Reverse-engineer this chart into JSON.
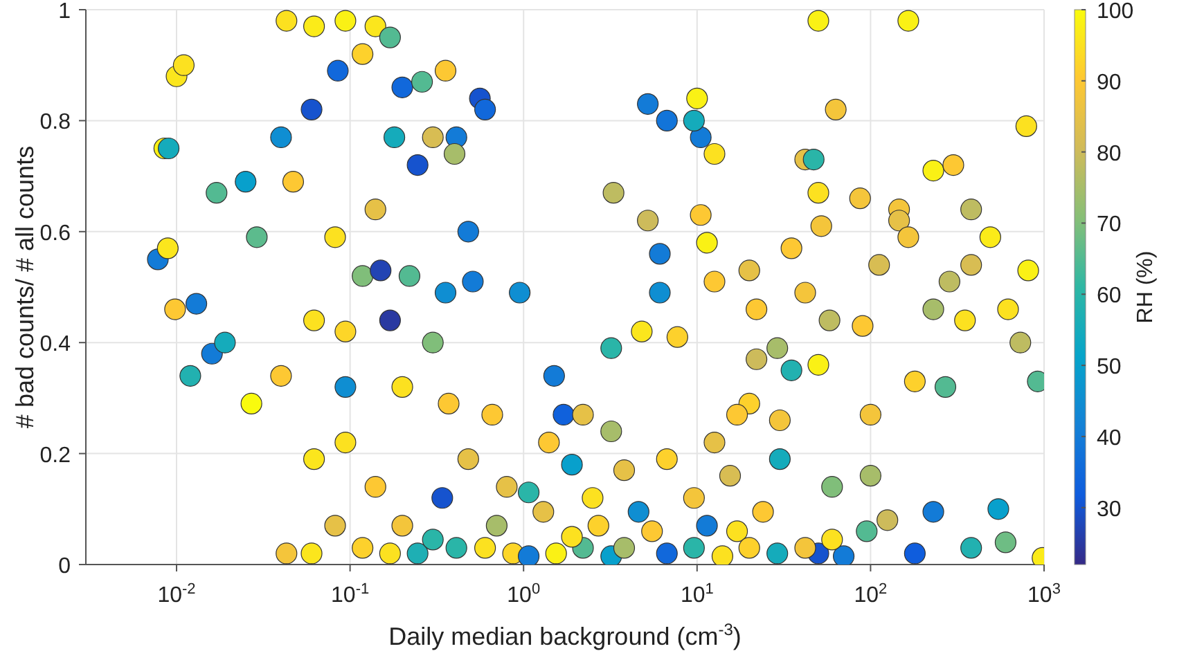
{
  "chart_data": {
    "type": "scatter",
    "xlabel": "Daily median background (cm$^{-3}$)",
    "ylabel": "# bad counts/ # all counts",
    "clabel": "RH (%)",
    "log": "x",
    "grid": true,
    "marker": "circle",
    "xlim": [
      0.003,
      1000
    ],
    "xticks": [
      {
        "value": 0.01,
        "label": "10$^{-2}$"
      },
      {
        "value": 0.1,
        "label": "10$^{-1}$"
      },
      {
        "value": 1,
        "label": "10$^{0}$"
      },
      {
        "value": 10,
        "label": "10$^{1}$"
      },
      {
        "value": 100,
        "label": "10$^{2}$"
      },
      {
        "value": 1000,
        "label": "10$^{3}$"
      }
    ],
    "ylim": [
      0,
      1
    ],
    "yticks": [
      0,
      0.2,
      0.4,
      0.6,
      0.8,
      1
    ],
    "clim": [
      22,
      100
    ],
    "cticks": [
      30,
      40,
      50,
      60,
      70,
      80,
      90,
      100
    ],
    "x": [
      0.043,
      0.062,
      0.094,
      0.14,
      0.01,
      0.011,
      0.0085,
      0.009,
      0.0078,
      0.0089,
      0.0098,
      0.013,
      0.012,
      0.016,
      0.019,
      0.029,
      0.017,
      0.025,
      0.04,
      0.06,
      0.085,
      0.118,
      0.17,
      0.2,
      0.245,
      0.18,
      0.26,
      0.41,
      0.56,
      0.6,
      0.355,
      0.3,
      0.4,
      0.047,
      0.082,
      0.118,
      0.14,
      0.062,
      0.094,
      0.15,
      0.17,
      0.22,
      0.355,
      0.51,
      0.95,
      0.48,
      0.3,
      0.2,
      0.027,
      0.04,
      0.094,
      0.37,
      0.48,
      0.34,
      0.66,
      0.062,
      0.094,
      0.14,
      0.082,
      0.043,
      0.06,
      0.118,
      0.2,
      0.245,
      0.41,
      0.7,
      0.87,
      0.8,
      1.4,
      1.5,
      1.7,
      2.2,
      3.2,
      4.8,
      3.2,
      6.1,
      7.7,
      10.5,
      11.4,
      12.6,
      10.5,
      9.6,
      6.7,
      5.2,
      10,
      3.3,
      5.2,
      6.1,
      12.6,
      20,
      22,
      35,
      42,
      47,
      50,
      52,
      50,
      165,
      63,
      87,
      146,
      146,
      165,
      112,
      230,
      300,
      380,
      490,
      790,
      810,
      620,
      285,
      380,
      350,
      230,
      730,
      920,
      270,
      180,
      100,
      90,
      50,
      35,
      29,
      42,
      58,
      22,
      20,
      17,
      30,
      12.6,
      15.5,
      30,
      60,
      100,
      125,
      230,
      545,
      600,
      980,
      380,
      180,
      70,
      50,
      95,
      6.7,
      4.6,
      3.2,
      2.2,
      1.54,
      1.07,
      1.07,
      1.9,
      2.5,
      3.8,
      6.7,
      9.6,
      11.4,
      17,
      24,
      29,
      14,
      9.6,
      5.5,
      3.8,
      2.7,
      1.9,
      1.3,
      0.6,
      0.3,
      0.17,
      42,
      60,
      20
    ],
    "values": [
      0.98,
      0.97,
      0.98,
      0.97,
      0.88,
      0.9,
      0.75,
      0.75,
      0.55,
      0.57,
      0.46,
      0.47,
      0.34,
      0.38,
      0.4,
      0.59,
      0.67,
      0.69,
      0.77,
      0.82,
      0.89,
      0.92,
      0.95,
      0.86,
      0.72,
      0.77,
      0.87,
      0.77,
      0.84,
      0.82,
      0.89,
      0.77,
      0.74,
      0.69,
      0.59,
      0.52,
      0.64,
      0.44,
      0.42,
      0.53,
      0.44,
      0.52,
      0.49,
      0.51,
      0.49,
      0.6,
      0.4,
      0.32,
      0.29,
      0.34,
      0.32,
      0.29,
      0.19,
      0.12,
      0.27,
      0.19,
      0.22,
      0.14,
      0.07,
      0.02,
      0.02,
      0.03,
      0.07,
      0.02,
      0.03,
      0.07,
      0.02,
      0.14,
      0.22,
      0.34,
      0.27,
      0.27,
      0.24,
      0.42,
      0.39,
      0.49,
      0.41,
      0.63,
      0.58,
      0.74,
      0.77,
      0.8,
      0.8,
      0.83,
      0.84,
      0.67,
      0.62,
      0.56,
      0.51,
      0.53,
      0.46,
      0.57,
      0.73,
      0.73,
      0.67,
      0.61,
      0.98,
      0.98,
      0.82,
      0.66,
      0.64,
      0.62,
      0.59,
      0.54,
      0.71,
      0.72,
      0.64,
      0.59,
      0.79,
      0.53,
      0.46,
      0.51,
      0.54,
      0.44,
      0.46,
      0.4,
      0.33,
      0.32,
      0.33,
      0.27,
      0.43,
      0.36,
      0.35,
      0.39,
      0.49,
      0.44,
      0.37,
      0.29,
      0.27,
      0.26,
      0.22,
      0.16,
      0.19,
      0.14,
      0.16,
      0.08,
      0.095,
      0.1,
      0.04,
      0.012,
      0.03,
      0.02,
      0.015,
      0.02,
      0.06,
      0.02,
      0.095,
      0.015,
      0.03,
      0.02,
      0.015,
      0.13,
      0.18,
      0.12,
      0.17,
      0.19,
      0.12,
      0.07,
      0.06,
      0.095,
      0.02,
      0.015,
      0.03,
      0.06,
      0.03,
      0.07,
      0.05,
      0.095,
      0.03,
      0.045,
      0.02,
      0.03,
      0.045,
      0.03
    ],
    "cvalues": [
      95,
      97,
      98,
      96,
      96,
      95,
      98,
      55,
      40,
      96,
      90,
      40,
      58,
      40,
      55,
      66,
      65,
      50,
      45,
      30,
      35,
      92,
      65,
      35,
      30,
      55,
      65,
      40,
      30,
      35,
      90,
      82,
      75,
      90,
      95,
      70,
      85,
      95,
      93,
      27,
      25,
      65,
      45,
      40,
      45,
      40,
      70,
      95,
      100,
      90,
      45,
      90,
      85,
      30,
      90,
      96,
      95,
      90,
      85,
      88,
      96,
      92,
      88,
      57,
      60,
      75,
      93,
      85,
      90,
      40,
      33,
      85,
      75,
      96,
      60,
      45,
      92,
      90,
      98,
      95,
      40,
      55,
      38,
      40,
      98,
      78,
      80,
      40,
      90,
      85,
      90,
      90,
      85,
      60,
      95,
      88,
      98,
      98,
      88,
      88,
      88,
      85,
      88,
      82,
      98,
      90,
      78,
      97,
      95,
      98,
      95,
      78,
      82,
      95,
      75,
      78,
      65,
      65,
      92,
      88,
      90,
      98,
      58,
      75,
      88,
      78,
      80,
      92,
      90,
      88,
      85,
      82,
      55,
      70,
      75,
      80,
      40,
      50,
      68,
      97,
      58,
      32,
      40,
      30,
      65,
      35,
      45,
      50,
      65,
      98,
      40,
      60,
      50,
      95,
      85,
      92,
      88,
      40,
      95,
      90,
      55,
      95,
      60,
      90,
      75,
      92,
      95,
      85,
      95,
      60,
      95,
      88,
      95,
      92
    ]
  }
}
